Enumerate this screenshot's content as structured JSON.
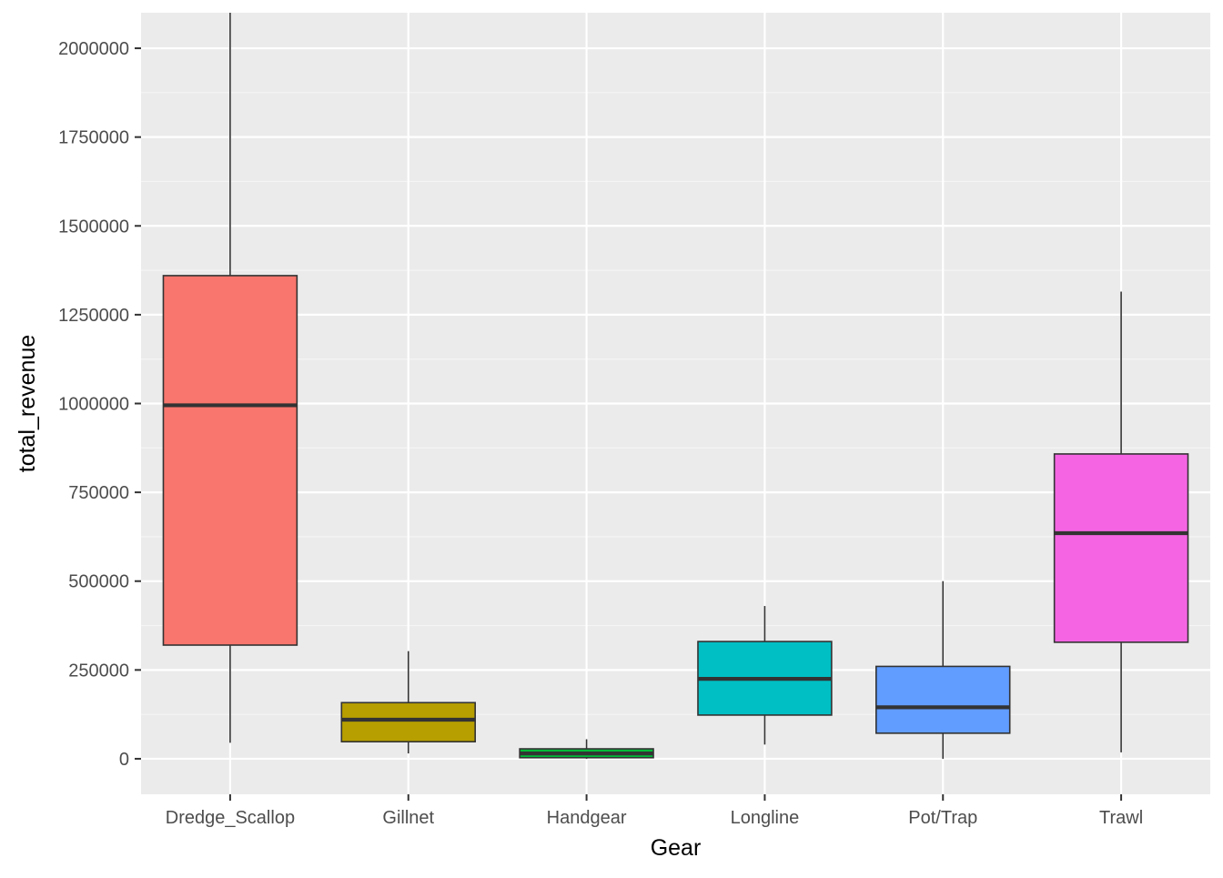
{
  "chart_data": {
    "type": "boxplot",
    "xlabel": "Gear",
    "ylabel": "total_revenue",
    "ylim": [
      -100000,
      2100000
    ],
    "y_ticks": [
      "0",
      "250000",
      "500000",
      "750000",
      "1000000",
      "1250000",
      "1500000",
      "1750000",
      "2000000"
    ],
    "y_tick_values": [
      0,
      250000,
      500000,
      750000,
      1000000,
      1250000,
      1500000,
      1750000,
      2000000
    ],
    "grid": true,
    "legend": "none",
    "categories": [
      "Dredge_Scallop",
      "Gillnet",
      "Handgear",
      "Longline",
      "Pot/Trap",
      "Trawl"
    ],
    "boxes": [
      {
        "category": "Dredge_Scallop",
        "lower_whisker": 45000,
        "q1": 320000,
        "median": 995000,
        "q3": 1360000,
        "upper_whisker": 2100000,
        "color": "#F8766D"
      },
      {
        "category": "Gillnet",
        "lower_whisker": 15000,
        "q1": 48000,
        "median": 110000,
        "q3": 158000,
        "upper_whisker": 303000,
        "color": "#B79F00"
      },
      {
        "category": "Handgear",
        "lower_whisker": 0,
        "q1": 3000,
        "median": 15000,
        "q3": 28000,
        "upper_whisker": 55000,
        "color": "#00BA38"
      },
      {
        "category": "Longline",
        "lower_whisker": 40000,
        "q1": 123000,
        "median": 225000,
        "q3": 330000,
        "upper_whisker": 430000,
        "color": "#00BFC4"
      },
      {
        "category": "Pot/Trap",
        "lower_whisker": 0,
        "q1": 72000,
        "median": 145000,
        "q3": 260000,
        "upper_whisker": 500000,
        "color": "#619CFF"
      },
      {
        "category": "Trawl",
        "lower_whisker": 18000,
        "q1": 328000,
        "median": 635000,
        "q3": 858000,
        "upper_whisker": 1315000,
        "color": "#F564E3"
      }
    ],
    "colors": {
      "panel_background": "#EBEBEB",
      "grid_major": "#FFFFFF",
      "grid_minor": "#F5F5F5",
      "box_outline": "#333333"
    }
  }
}
